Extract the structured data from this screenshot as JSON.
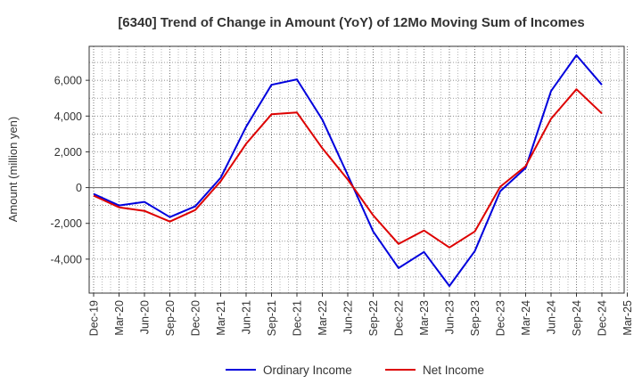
{
  "chart_data": {
    "type": "line",
    "title": "[6340]  Trend of Change in Amount (YoY) of 12Mo Moving Sum of Incomes",
    "ylabel": "Amount (million yen)",
    "xlabel": "",
    "categories": [
      "Dec-19",
      "Mar-20",
      "Jun-20",
      "Sep-20",
      "Dec-20",
      "Mar-21",
      "Jun-21",
      "Sep-21",
      "Dec-21",
      "Mar-22",
      "Jun-22",
      "Sep-22",
      "Dec-22",
      "Mar-23",
      "Jun-23",
      "Sep-23",
      "Dec-23",
      "Mar-24",
      "Jun-24",
      "Sep-24",
      "Dec-24",
      "Mar-25"
    ],
    "yticks": [
      6000,
      4000,
      2000,
      0,
      -2000,
      -4000
    ],
    "ytick_labels": [
      "6,000",
      "4,000",
      "2,000",
      "0",
      "-2,000",
      "-4,000"
    ],
    "ylim": [
      -5900,
      7900
    ],
    "grid": true,
    "legend_position": "bottom",
    "series": [
      {
        "name": "Ordinary Income",
        "color": "#0000dd",
        "values": [
          -350,
          -1000,
          -800,
          -1650,
          -1050,
          550,
          3400,
          5750,
          6050,
          3800,
          700,
          -2450,
          -4500,
          -3600,
          -5500,
          -3550,
          -200,
          1100,
          5400,
          7400,
          5750,
          null
        ]
      },
      {
        "name": "Net Income",
        "color": "#dd0000",
        "values": [
          -450,
          -1100,
          -1300,
          -1900,
          -1250,
          350,
          2450,
          4100,
          4200,
          2200,
          450,
          -1550,
          -3150,
          -2400,
          -3350,
          -2450,
          50,
          1200,
          3850,
          5500,
          4150,
          null
        ]
      }
    ]
  }
}
